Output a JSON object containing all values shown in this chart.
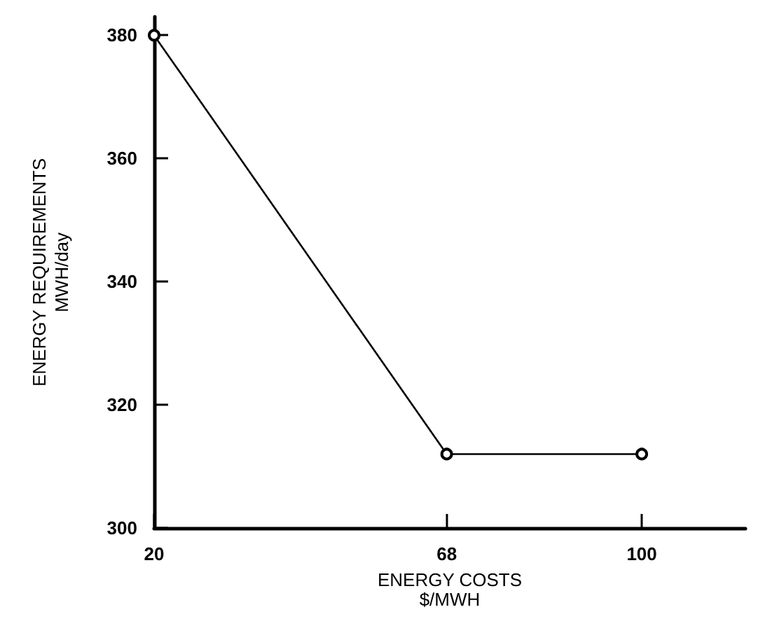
{
  "chart_data": {
    "type": "line",
    "xlabel": "ENERGY COSTS\n$/MWH",
    "ylabel": "ENERGY REQUIREMENTS\nMWH/day",
    "x": [
      20,
      68,
      100
    ],
    "series": [
      {
        "color": "#000000",
        "values": [
          380,
          312,
          312
        ]
      }
    ],
    "xlim": [
      20,
      117
    ],
    "xticks": [
      20,
      68,
      100
    ],
    "ylim": [
      300,
      383
    ],
    "yticks": [
      300,
      320,
      340,
      360,
      380
    ],
    "marker": "circle",
    "line_style": "solid"
  }
}
